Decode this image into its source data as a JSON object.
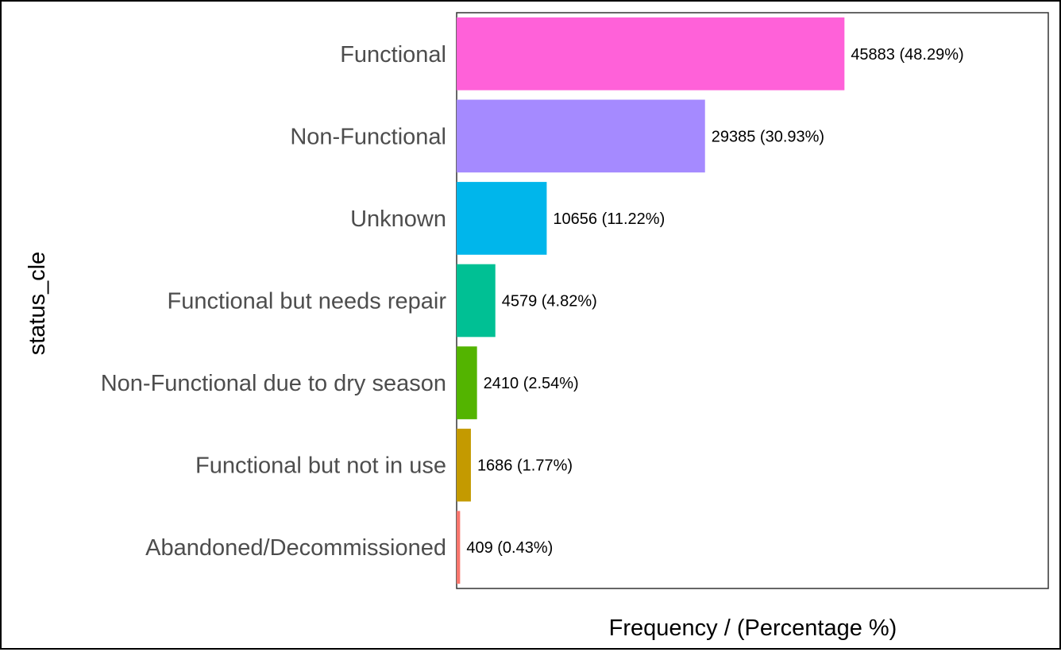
{
  "chart_data": {
    "type": "bar",
    "orientation": "horizontal",
    "xlabel": "Frequency / (Percentage %)",
    "ylabel": "status_cle",
    "categories": [
      "Functional",
      "Non-Functional",
      "Unknown",
      "Functional but needs repair",
      "Non-Functional due to dry season",
      "Functional but not in use",
      "Abandoned/Decommissioned"
    ],
    "values": [
      45883,
      29385,
      10656,
      4579,
      2410,
      1686,
      409
    ],
    "percentages": [
      48.29,
      30.93,
      11.22,
      4.82,
      2.54,
      1.77,
      0.43
    ],
    "data_labels": [
      "45883 (48.29%)",
      "29385 (30.93%)",
      "10656 (11.22%)",
      "4579 (4.82%)",
      "2410 (2.54%)",
      "1686 (1.77%)",
      "409 (0.43%)"
    ],
    "colors": [
      "#FF61D9",
      "#A58AFF",
      "#00B6EB",
      "#00C094",
      "#53B400",
      "#C49A00",
      "#F8766D"
    ],
    "xlim": [
      0,
      70000
    ],
    "x_ticks": "hidden",
    "grid": false,
    "legend": "none"
  }
}
